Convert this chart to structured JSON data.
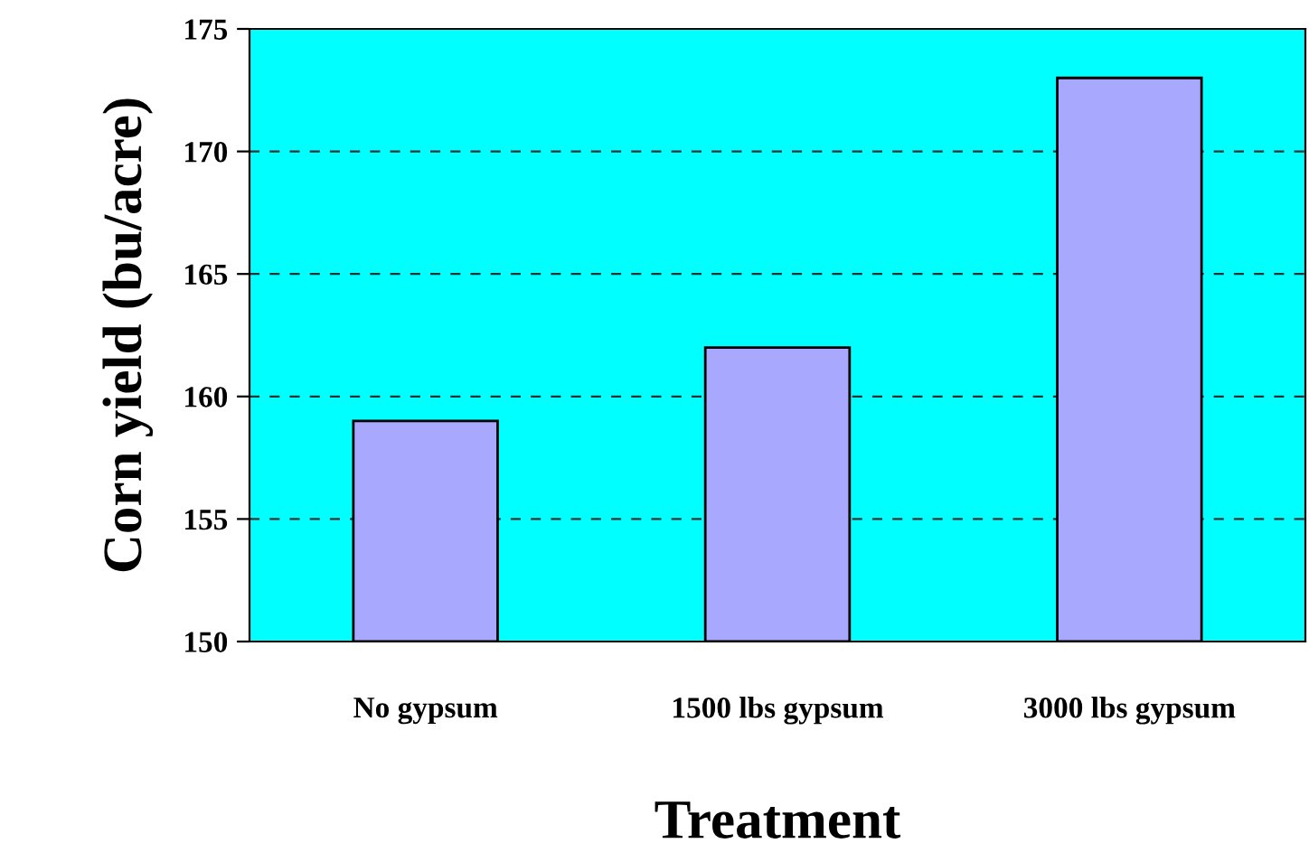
{
  "chart_data": {
    "type": "bar",
    "xlabel": "Treatment",
    "ylabel": "Corn yield (bu/acre)",
    "categories": [
      "No gypsum",
      "1500 lbs gypsum",
      "3000 lbs gypsum"
    ],
    "values": [
      159,
      162,
      173
    ],
    "color": "#a8a8ff",
    "ylim": [
      150,
      175
    ],
    "yticks": [
      150,
      155,
      160,
      165,
      170,
      175
    ],
    "grid": "y",
    "legend": false
  }
}
